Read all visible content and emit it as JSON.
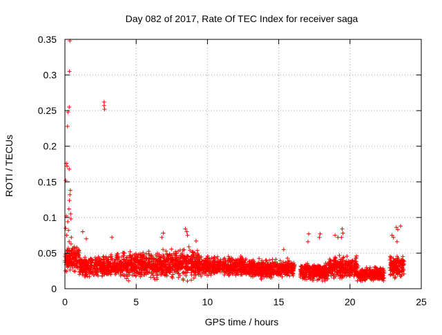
{
  "chart_data": {
    "type": "scatter",
    "title": "Day 082 of 2017, Rate Of TEC Index for receiver saga",
    "xlabel": "GPS time / hours",
    "ylabel": "ROTI / TECUs",
    "xlim": [
      0,
      25
    ],
    "ylim": [
      0,
      0.35
    ],
    "x_ticks": [
      0,
      5,
      10,
      15,
      20,
      25
    ],
    "y_ticks": [
      0,
      0.05,
      0.1,
      0.15,
      0.2,
      0.25,
      0.3,
      0.35
    ],
    "grid": true,
    "marker": "+",
    "series_color": "#ff0000",
    "series": [
      {
        "name": "ROTI",
        "bands": [
          {
            "x_start": 0.0,
            "x_end": 1.0,
            "low": 0.018,
            "high": 0.06
          },
          {
            "x_start": 1.0,
            "x_end": 3.5,
            "low": 0.012,
            "high": 0.045
          },
          {
            "x_start": 3.5,
            "x_end": 6.5,
            "low": 0.01,
            "high": 0.05
          },
          {
            "x_start": 6.5,
            "x_end": 9.5,
            "low": 0.008,
            "high": 0.055
          },
          {
            "x_start": 9.5,
            "x_end": 12.5,
            "low": 0.015,
            "high": 0.045
          },
          {
            "x_start": 12.5,
            "x_end": 16.1,
            "low": 0.012,
            "high": 0.04
          },
          {
            "x_start": 16.5,
            "x_end": 18.5,
            "low": 0.008,
            "high": 0.035
          },
          {
            "x_start": 18.5,
            "x_end": 20.5,
            "low": 0.01,
            "high": 0.045
          },
          {
            "x_start": 20.5,
            "x_end": 22.4,
            "low": 0.008,
            "high": 0.03
          },
          {
            "x_start": 22.8,
            "x_end": 23.8,
            "low": 0.01,
            "high": 0.045
          }
        ],
        "spikes": [
          {
            "x": 0.35,
            "y": 0.348
          },
          {
            "x": 0.32,
            "y": 0.305
          },
          {
            "x": 0.3,
            "y": 0.255
          },
          {
            "x": 0.22,
            "y": 0.248
          },
          {
            "x": 0.18,
            "y": 0.228
          },
          {
            "x": 0.1,
            "y": 0.176
          },
          {
            "x": 0.15,
            "y": 0.172
          },
          {
            "x": 0.3,
            "y": 0.168
          },
          {
            "x": 0.05,
            "y": 0.152
          },
          {
            "x": 0.38,
            "y": 0.138
          },
          {
            "x": 0.35,
            "y": 0.132
          },
          {
            "x": 0.32,
            "y": 0.124
          },
          {
            "x": 0.28,
            "y": 0.112
          },
          {
            "x": 0.4,
            "y": 0.105
          },
          {
            "x": 0.1,
            "y": 0.102
          },
          {
            "x": 0.42,
            "y": 0.098
          },
          {
            "x": 0.2,
            "y": 0.094
          },
          {
            "x": 0.05,
            "y": 0.085
          },
          {
            "x": 0.25,
            "y": 0.082
          },
          {
            "x": 0.12,
            "y": 0.075
          },
          {
            "x": 0.45,
            "y": 0.072
          },
          {
            "x": 0.3,
            "y": 0.066
          },
          {
            "x": 2.75,
            "y": 0.262
          },
          {
            "x": 2.75,
            "y": 0.257
          },
          {
            "x": 2.78,
            "y": 0.252
          },
          {
            "x": 1.25,
            "y": 0.08
          },
          {
            "x": 1.5,
            "y": 0.07
          },
          {
            "x": 3.3,
            "y": 0.072
          },
          {
            "x": 6.9,
            "y": 0.078
          },
          {
            "x": 6.8,
            "y": 0.072
          },
          {
            "x": 8.45,
            "y": 0.084
          },
          {
            "x": 8.55,
            "y": 0.08
          },
          {
            "x": 8.6,
            "y": 0.075
          },
          {
            "x": 9.2,
            "y": 0.067
          },
          {
            "x": 15.35,
            "y": 0.055
          },
          {
            "x": 17.1,
            "y": 0.077
          },
          {
            "x": 17.05,
            "y": 0.066
          },
          {
            "x": 17.9,
            "y": 0.077
          },
          {
            "x": 17.85,
            "y": 0.072
          },
          {
            "x": 19.45,
            "y": 0.084
          },
          {
            "x": 19.5,
            "y": 0.078
          },
          {
            "x": 19.4,
            "y": 0.072
          },
          {
            "x": 19.15,
            "y": 0.072
          },
          {
            "x": 18.95,
            "y": 0.075
          },
          {
            "x": 23.25,
            "y": 0.086
          },
          {
            "x": 23.55,
            "y": 0.088
          },
          {
            "x": 23.35,
            "y": 0.083
          },
          {
            "x": 22.95,
            "y": 0.075
          },
          {
            "x": 23.05,
            "y": 0.072
          },
          {
            "x": 23.3,
            "y": 0.066
          }
        ]
      }
    ]
  }
}
